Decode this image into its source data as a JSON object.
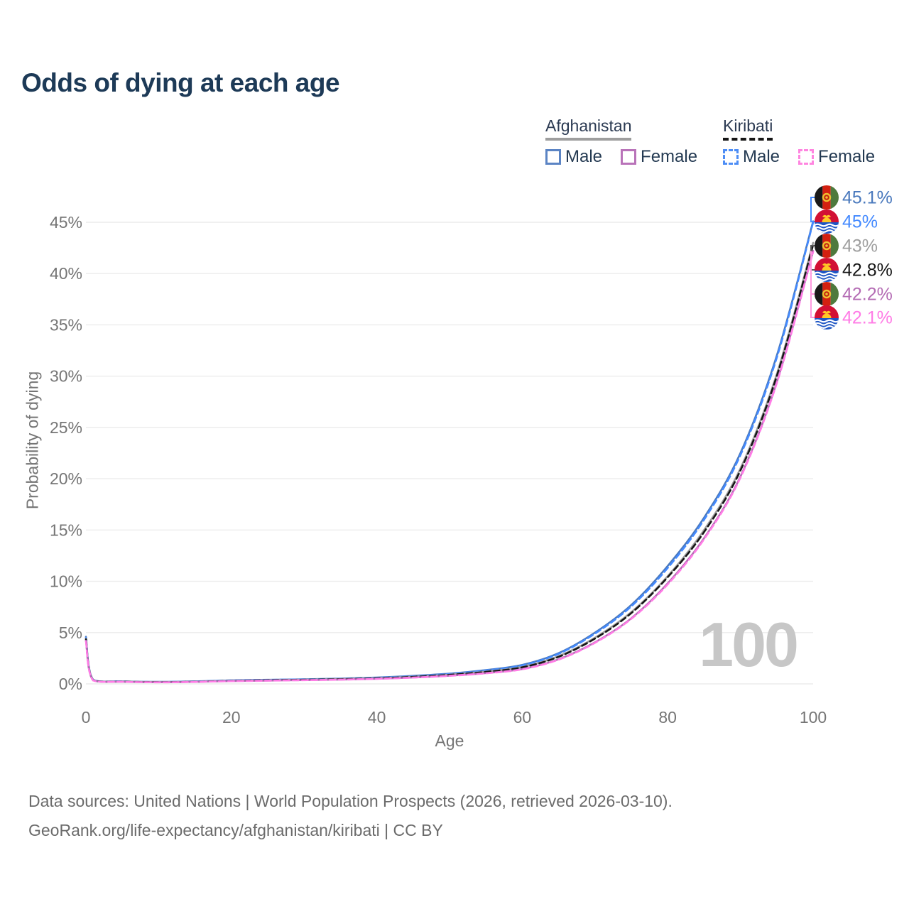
{
  "title": "Odds of dying at each age",
  "legend": {
    "groups": [
      {
        "name": "Afghanistan",
        "underline_style": "solid",
        "underline_color": "#9e9e9e",
        "items": [
          {
            "label": "Male",
            "style": "solid",
            "color": "#5b84c4"
          },
          {
            "label": "Female",
            "style": "solid",
            "color": "#b973b9"
          }
        ]
      },
      {
        "name": "Kiribati",
        "underline_style": "dashed",
        "underline_color": "#161616",
        "items": [
          {
            "label": "Male",
            "style": "dashed",
            "color": "#4d8df5"
          },
          {
            "label": "Female",
            "style": "dashed",
            "color": "#ff85e0"
          }
        ]
      }
    ]
  },
  "chart_data": {
    "type": "line",
    "title": "Odds of dying at each age",
    "xlabel": "Age",
    "ylabel": "Probability of dying",
    "xlim": [
      0,
      100
    ],
    "ylim_percent": [
      0,
      45
    ],
    "grid": "horizontal",
    "x_ticks": [
      0,
      20,
      40,
      60,
      80,
      100
    ],
    "y_ticks": [
      "0%",
      "5%",
      "10%",
      "15%",
      "20%",
      "25%",
      "30%",
      "35%",
      "40%",
      "45%"
    ],
    "x": [
      0,
      1,
      5,
      10,
      15,
      20,
      25,
      30,
      35,
      40,
      45,
      50,
      55,
      60,
      65,
      70,
      75,
      80,
      85,
      90,
      95,
      100
    ],
    "leader_colors": [
      "#448aff",
      "#5a5a5a",
      "#ff9ae0"
    ],
    "series": [
      {
        "id": "afghanistan-male",
        "name": "Afghanistan Male",
        "color": "#4a79bd",
        "dash": "solid",
        "end_label": "45.1%",
        "values": [
          4.6,
          0.4,
          0.25,
          0.2,
          0.25,
          0.34,
          0.4,
          0.45,
          0.52,
          0.62,
          0.78,
          1.0,
          1.35,
          1.85,
          3.0,
          5.0,
          7.7,
          11.5,
          16.2,
          22.5,
          32.0,
          45.1
        ]
      },
      {
        "id": "kiribati-male",
        "name": "Kiribati Male",
        "color": "#448aff",
        "dash": "dashed",
        "end_label": "45%",
        "values": [
          4.5,
          0.38,
          0.24,
          0.19,
          0.24,
          0.33,
          0.39,
          0.44,
          0.5,
          0.6,
          0.75,
          0.97,
          1.31,
          1.8,
          2.93,
          4.9,
          7.56,
          11.3,
          16.0,
          22.3,
          31.8,
          45.0
        ]
      },
      {
        "id": "afghanistan-overall",
        "name": "Afghanistan",
        "color": "#9e9e9e",
        "dash": "solid",
        "end_label": "43%",
        "values": [
          4.4,
          0.37,
          0.23,
          0.18,
          0.22,
          0.3,
          0.36,
          0.41,
          0.47,
          0.56,
          0.7,
          0.9,
          1.2,
          1.65,
          2.7,
          4.5,
          7.0,
          10.5,
          15.0,
          21.0,
          30.2,
          43.0
        ]
      },
      {
        "id": "kiribati-overall",
        "name": "Kiribati",
        "color": "#161616",
        "dash": "dashed",
        "end_label": "42.8%",
        "values": [
          4.35,
          0.36,
          0.22,
          0.17,
          0.21,
          0.29,
          0.35,
          0.4,
          0.46,
          0.55,
          0.68,
          0.88,
          1.17,
          1.61,
          2.64,
          4.42,
          6.9,
          10.4,
          14.8,
          20.8,
          30.0,
          42.8
        ]
      },
      {
        "id": "afghanistan-female",
        "name": "Afghanistan Female",
        "color": "#b46cb4",
        "dash": "solid",
        "end_label": "42.2%",
        "values": [
          4.2,
          0.34,
          0.21,
          0.16,
          0.2,
          0.27,
          0.32,
          0.37,
          0.42,
          0.5,
          0.62,
          0.8,
          1.05,
          1.45,
          2.4,
          4.05,
          6.4,
          9.8,
          14.2,
          20.2,
          29.4,
          42.2
        ]
      },
      {
        "id": "kiribati-female",
        "name": "Kiribati Female",
        "color": "#ff7ce6",
        "dash": "dashed",
        "end_label": "42.1%",
        "values": [
          4.15,
          0.33,
          0.2,
          0.15,
          0.19,
          0.26,
          0.31,
          0.36,
          0.41,
          0.49,
          0.61,
          0.78,
          1.03,
          1.42,
          2.36,
          4.0,
          6.34,
          9.7,
          14.1,
          20.1,
          29.3,
          42.1
        ]
      }
    ]
  },
  "end_labels": [
    {
      "country": "Afghanistan",
      "flag": "afghanistan",
      "text": "45.1%",
      "color": "#4a79bd"
    },
    {
      "country": "Kiribati",
      "flag": "kiribati",
      "text": "45%",
      "color": "#448aff"
    },
    {
      "country": "Afghanistan",
      "flag": "afghanistan",
      "text": "43%",
      "color": "#9e9e9e"
    },
    {
      "country": "Kiribati",
      "flag": "kiribati",
      "text": "42.8%",
      "color": "#161616"
    },
    {
      "country": "Afghanistan",
      "flag": "afghanistan",
      "text": "42.2%",
      "color": "#b46cb4"
    },
    {
      "country": "Kiribati",
      "flag": "kiribati",
      "text": "42.1%",
      "color": "#ff7ce6"
    }
  ],
  "watermark": "100",
  "footer": {
    "line1": "Data sources: United Nations | World Population Prospects (2026, retrieved 2026-03-10).",
    "line2": "GeoRank.org/life-expectancy/afghanistan/kiribati | CC BY"
  }
}
